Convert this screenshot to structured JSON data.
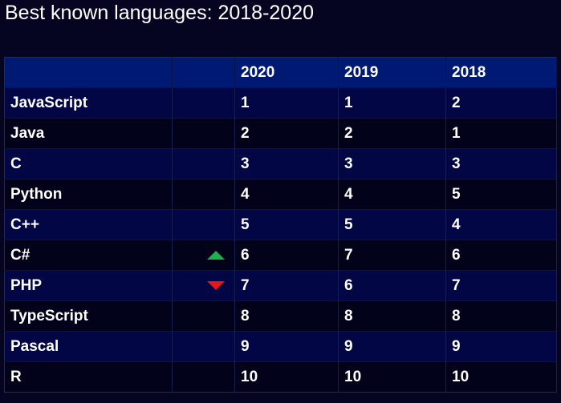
{
  "title": "Best known languages: 2018-2020",
  "colors": {
    "background": "#050522",
    "header_bg": "#001a73",
    "row_odd": "#020645",
    "row_even": "#02021a",
    "trend_up": "#1fb14e",
    "trend_down": "#e8141e"
  },
  "table": {
    "headers": [
      "",
      "",
      "2020",
      "2019",
      "2018"
    ],
    "rows": [
      {
        "language": "JavaScript",
        "trend": "",
        "r2020": "1",
        "r2019": "1",
        "r2018": "2"
      },
      {
        "language": "Java",
        "trend": "",
        "r2020": "2",
        "r2019": "2",
        "r2018": "1"
      },
      {
        "language": "C",
        "trend": "",
        "r2020": "3",
        "r2019": "3",
        "r2018": "3"
      },
      {
        "language": "Python",
        "trend": "",
        "r2020": "4",
        "r2019": "4",
        "r2018": "5"
      },
      {
        "language": "C++",
        "trend": "",
        "r2020": "5",
        "r2019": "5",
        "r2018": "4"
      },
      {
        "language": "C#",
        "trend": "up-triangle-icon",
        "r2020": "6",
        "r2019": "7",
        "r2018": "6"
      },
      {
        "language": "PHP",
        "trend": "down-triangle-icon",
        "r2020": "7",
        "r2019": "6",
        "r2018": "7"
      },
      {
        "language": "TypeScript",
        "trend": "",
        "r2020": "8",
        "r2019": "8",
        "r2018": "8"
      },
      {
        "language": "Pascal",
        "trend": "",
        "r2020": "9",
        "r2019": "9",
        "r2018": "9"
      },
      {
        "language": "R",
        "trend": "",
        "r2020": "10",
        "r2019": "10",
        "r2018": "10"
      }
    ]
  }
}
